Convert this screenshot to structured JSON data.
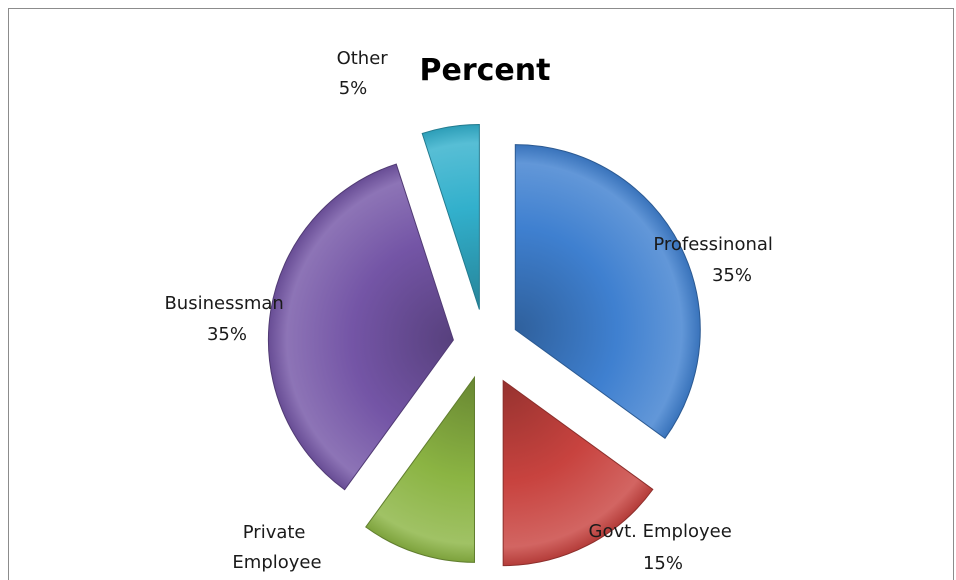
{
  "chart_data": {
    "type": "pie",
    "title": "Percent",
    "exploded": true,
    "legend": "none",
    "slices": [
      {
        "label": "Professinonal",
        "value_text": "35%",
        "value": 35,
        "color": "#3f80d0"
      },
      {
        "label": "Govt. Employee",
        "value_text": "15%",
        "value": 15,
        "color": "#c8433f"
      },
      {
        "label": "Private Employee",
        "value_text": "10%",
        "value": 10,
        "color": "#8bb443"
      },
      {
        "label": "Businessman",
        "value_text": "35%",
        "value": 35,
        "color": "#7455a6"
      },
      {
        "label": "Other",
        "value_text": "5%",
        "value": 5,
        "color": "#32b0cc"
      }
    ]
  }
}
